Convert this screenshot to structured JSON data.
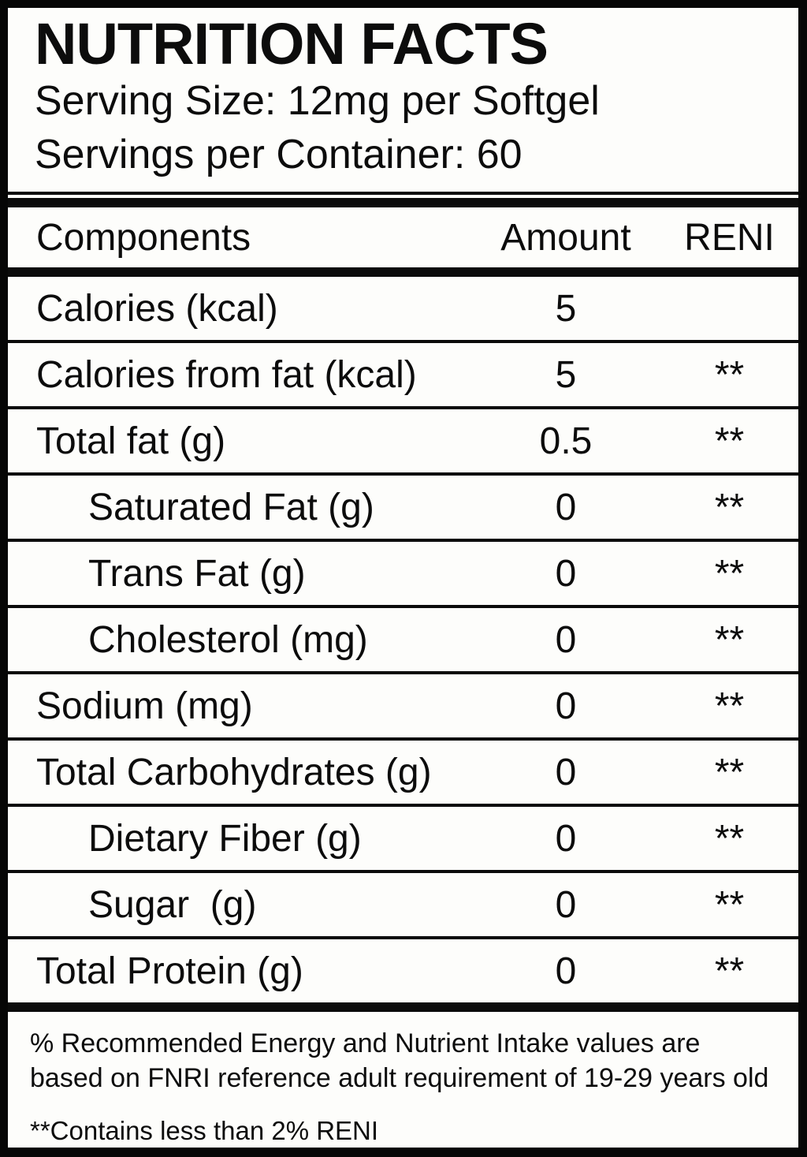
{
  "label": {
    "title": "NUTRITION FACTS",
    "serving_size": "Serving Size: 12mg per Softgel",
    "servings_per_container": "Servings per Container: 60"
  },
  "table": {
    "columns": [
      "Components",
      "Amount",
      "RENI"
    ],
    "rows": [
      {
        "name": "Calories (kcal)",
        "amount": "5",
        "reni": "",
        "indent": false
      },
      {
        "name": "Calories from fat (kcal)",
        "amount": "5",
        "reni": "**",
        "indent": false
      },
      {
        "name": "Total fat (g)",
        "amount": "0.5",
        "reni": "**",
        "indent": false
      },
      {
        "name": "Saturated Fat (g)",
        "amount": "0",
        "reni": "**",
        "indent": true
      },
      {
        "name": "Trans Fat (g)",
        "amount": "0",
        "reni": "**",
        "indent": true
      },
      {
        "name": "Cholesterol (mg)",
        "amount": "0",
        "reni": "**",
        "indent": true
      },
      {
        "name": "Sodium (mg)",
        "amount": "0",
        "reni": "**",
        "indent": false
      },
      {
        "name": "Total Carbohydrates (g)",
        "amount": "0",
        "reni": "**",
        "indent": false
      },
      {
        "name": "Dietary Fiber (g)",
        "amount": "0",
        "reni": "**",
        "indent": true
      },
      {
        "name": "Sugar  (g)",
        "amount": "0",
        "reni": "**",
        "indent": true
      },
      {
        "name": "Total Protein (g)",
        "amount": "0",
        "reni": "**",
        "indent": false
      }
    ]
  },
  "footnotes": {
    "reni_note": "% Recommended Energy and Nutrient Intake values are based on FNRI reference adult requirement of 19-29 years old",
    "contains_note": "**Contains less than 2% RENI"
  },
  "colors": {
    "background": "#fdfdfb",
    "text": "#0c0c0c",
    "border": "#060606"
  }
}
